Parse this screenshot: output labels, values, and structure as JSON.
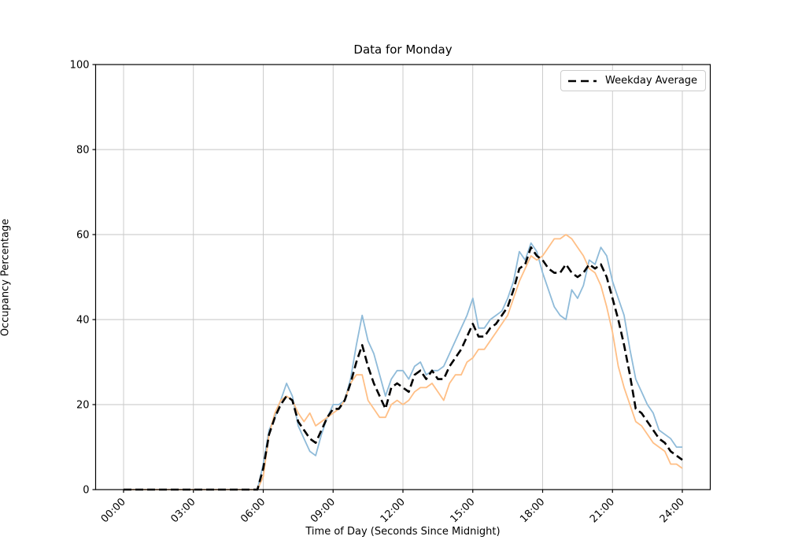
{
  "figure": {
    "background_color": "#ffffff",
    "spine_color": "#000000",
    "grid_color": "#c6c6c6"
  },
  "chart_data": {
    "type": "line",
    "title": "Data for Monday",
    "xlabel": "Time of Day (Seconds Since Midnight)",
    "ylabel": "Occupancy Percentage",
    "grid": true,
    "ylim": [
      0,
      100
    ],
    "y_ticks": [
      0,
      20,
      40,
      60,
      80,
      100
    ],
    "xlim_seconds": [
      -4320,
      90720
    ],
    "x_ticks_seconds": [
      0,
      10800,
      21600,
      32400,
      43200,
      54000,
      64800,
      75600,
      86400
    ],
    "x_tick_labels": [
      "00:00",
      "03:00",
      "06:00",
      "09:00",
      "12:00",
      "15:00",
      "18:00",
      "21:00",
      "24:00"
    ],
    "x_start_seconds": 0,
    "x_step_seconds": 900,
    "legend": {
      "label": "Weekday Average",
      "line_color": "#000000",
      "line_style": "dashed",
      "position": "upper right"
    },
    "series": [
      {
        "name": "monday-series-blue",
        "color": "#8fbbd9",
        "style": "solid",
        "in_legend": false,
        "values": [
          0,
          0,
          0,
          0,
          0,
          0,
          0,
          0,
          0,
          0,
          0,
          0,
          0,
          0,
          0,
          0,
          0,
          0,
          0,
          0,
          0,
          0,
          0,
          0,
          6,
          14,
          17,
          21,
          25,
          22,
          15,
          12,
          9,
          8,
          13,
          17,
          20,
          20,
          21,
          26,
          34,
          41,
          35,
          32,
          27,
          22,
          26,
          28,
          28,
          26,
          29,
          30,
          27,
          28,
          28,
          29,
          32,
          35,
          38,
          41,
          45,
          38,
          38,
          40,
          41,
          42,
          45,
          49,
          56,
          54,
          58,
          56,
          51,
          47,
          43,
          41,
          40,
          47,
          45,
          48,
          54,
          53,
          57,
          55,
          49,
          45,
          41,
          33,
          26,
          23,
          20,
          18,
          14,
          13,
          12,
          10,
          10
        ]
      },
      {
        "name": "monday-series-orange",
        "color": "#ffbf86",
        "style": "solid",
        "in_legend": false,
        "values": [
          0,
          0,
          0,
          0,
          0,
          0,
          0,
          0,
          0,
          0,
          0,
          0,
          0,
          0,
          0,
          0,
          0,
          0,
          0,
          0,
          0,
          0,
          0,
          0,
          3,
          13,
          18,
          21,
          22,
          21,
          18,
          16,
          18,
          15,
          16,
          17,
          18,
          19,
          21,
          25,
          27,
          27,
          21,
          19,
          17,
          17,
          20,
          21,
          20,
          21,
          23,
          24,
          24,
          25,
          23,
          21,
          25,
          27,
          27,
          30,
          31,
          33,
          33,
          35,
          37,
          39,
          41,
          45,
          49,
          52,
          55,
          54,
          55,
          57,
          59,
          59,
          60,
          59,
          57,
          55,
          52,
          51,
          48,
          43,
          37,
          29,
          24,
          20,
          16,
          15,
          13,
          11,
          10,
          9,
          6,
          6,
          5
        ]
      },
      {
        "name": "weekday-average",
        "color": "#000000",
        "style": "dashed",
        "in_legend": true,
        "values": [
          0,
          0,
          0,
          0,
          0,
          0,
          0,
          0,
          0,
          0,
          0,
          0,
          0,
          0,
          0,
          0,
          0,
          0,
          0,
          0,
          0,
          0,
          0,
          0,
          5,
          13,
          17,
          20,
          22,
          21,
          16,
          14,
          12,
          11,
          14,
          17,
          19,
          19,
          21,
          25,
          30,
          34,
          29,
          25,
          22,
          19,
          24,
          25,
          24,
          23,
          27,
          28,
          26,
          28,
          26,
          26,
          29,
          31,
          33,
          36,
          39,
          36,
          36,
          38,
          39,
          41,
          43,
          47,
          52,
          53,
          57,
          55,
          54,
          52,
          51,
          51,
          53,
          51,
          50,
          51,
          53,
          52,
          53,
          50,
          45,
          40,
          34,
          27,
          19,
          18,
          16,
          14,
          12,
          11,
          9,
          8,
          7
        ]
      }
    ]
  }
}
